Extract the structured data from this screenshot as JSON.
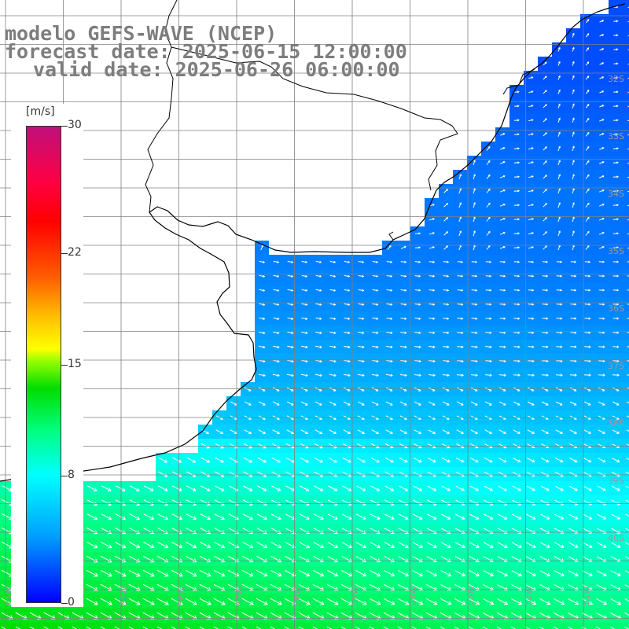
{
  "title": {
    "model": "modelo GEFS-WAVE (NCEP)",
    "forecast": "forecast date: 2025-06-15 12:00:00",
    "valid": "valid date: 2025-06-26 06:00:00"
  },
  "colorbar": {
    "unit": "[m/s]",
    "ticks": [
      {
        "label": "30",
        "value": 30
      },
      {
        "label": "22",
        "value": 22
      },
      {
        "label": "15",
        "value": 15
      },
      {
        "label": "8",
        "value": 8
      },
      {
        "label": "0",
        "value": 0
      }
    ],
    "range": [
      0,
      30
    ]
  },
  "grid": {
    "lat_labels": [
      "32S",
      "33S",
      "34S",
      "35S",
      "36S",
      "37S",
      "38S",
      "39S",
      "40S"
    ],
    "lon_labels": [
      "61W",
      "60W",
      "59W",
      "58W",
      "57W",
      "56W",
      "55W",
      "54W",
      "53W",
      "52W",
      "51W"
    ]
  },
  "chart_data": {
    "type": "heatmap",
    "quantity": "wind speed",
    "units": "m/s",
    "colorscale_range": [
      0,
      30
    ],
    "lat_range": [
      "31S",
      "41S"
    ],
    "lon_range": [
      "62W",
      "51W"
    ],
    "speed_by_lat": [
      {
        "lat": "31S",
        "speed": 2
      },
      {
        "lat": "32S",
        "speed": 2
      },
      {
        "lat": "33S",
        "speed": 2.5
      },
      {
        "lat": "34S",
        "speed": 3
      },
      {
        "lat": "35S",
        "speed": 3
      },
      {
        "lat": "36S",
        "speed": 3.5
      },
      {
        "lat": "37S",
        "speed": 4.5
      },
      {
        "lat": "38S",
        "speed": 6
      },
      {
        "lat": "39S",
        "speed": 8
      },
      {
        "lat": "40S",
        "speed": 9.5
      },
      {
        "lat": "41S",
        "speed": 11
      }
    ],
    "wind_direction": "northwesterly in the south, light and variable in the north"
  }
}
